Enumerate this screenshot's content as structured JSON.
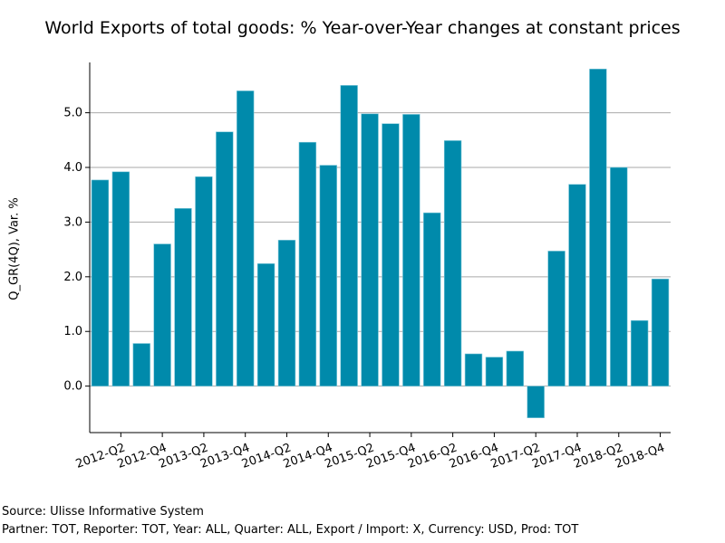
{
  "chart_data": {
    "type": "bar",
    "title": "World Exports of total goods: % Year-over-Year changes at constant prices",
    "xlabel": "",
    "ylabel": "Q_GR(4Q), Var. %",
    "ylim": [
      -0.85,
      5.92
    ],
    "yticks": [
      "0.0",
      "1.0",
      "2.0",
      "3.0",
      "4.0",
      "5.0"
    ],
    "grid": true,
    "bar_color": "#008aab",
    "categories": [
      "2012-Q1",
      "2012-Q2",
      "2012-Q3",
      "2012-Q4",
      "2013-Q1",
      "2013-Q2",
      "2013-Q3",
      "2013-Q4",
      "2014-Q1",
      "2014-Q2",
      "2014-Q3",
      "2014-Q4",
      "2015-Q1",
      "2015-Q2",
      "2015-Q3",
      "2015-Q4",
      "2016-Q1",
      "2016-Q2",
      "2016-Q3",
      "2016-Q4",
      "2017-Q1",
      "2017-Q2",
      "2017-Q3",
      "2017-Q4",
      "2018-Q1",
      "2018-Q2",
      "2018-Q3",
      "2018-Q4"
    ],
    "xtick_labels": [
      "2012-Q2",
      "2012-Q4",
      "2013-Q2",
      "2013-Q4",
      "2014-Q2",
      "2014-Q4",
      "2015-Q2",
      "2015-Q4",
      "2016-Q2",
      "2016-Q4",
      "2017-Q2",
      "2017-Q4",
      "2018-Q2",
      "2018-Q4"
    ],
    "values": [
      3.77,
      3.92,
      0.78,
      2.6,
      3.25,
      3.83,
      4.65,
      5.4,
      2.24,
      2.67,
      4.46,
      4.04,
      5.5,
      4.98,
      4.8,
      4.97,
      3.17,
      4.49,
      0.59,
      0.53,
      0.64,
      -0.58,
      2.47,
      3.69,
      5.8,
      4.0,
      1.2,
      1.96
    ]
  },
  "footer": {
    "source": "Source: Ulisse Informative System",
    "filters": "Partner: TOT, Reporter: TOT, Year: ALL, Quarter: ALL, Export / Import: X, Currency: USD, Prod: TOT"
  }
}
